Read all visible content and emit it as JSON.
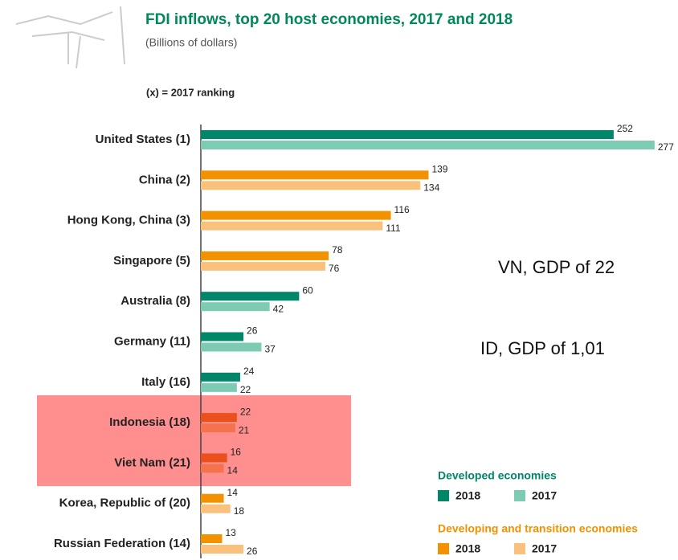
{
  "chart_data": {
    "type": "bar",
    "orientation": "horizontal",
    "title": "FDI inflows, top 20 host economies, 2017 and 2018",
    "subtitle": "(Billions of dollars)",
    "note": "(x) = 2017 ranking",
    "categories": [
      "United States (1)",
      "China (2)",
      "Hong Kong, China (3)",
      "Singapore (5)",
      "Australia (8)",
      "Germany (11)",
      "Italy (16)",
      "Indonesia (18)",
      "Viet Nam (21)",
      "Korea, Republic of (20)",
      "Russian Federation (14)"
    ],
    "series": [
      {
        "name": "2018",
        "values": [
          252,
          139,
          116,
          78,
          60,
          26,
          24,
          22,
          16,
          14,
          13
        ],
        "colors": [
          "#00876a",
          "#f39200",
          "#f39200",
          "#f39200",
          "#00876a",
          "#00876a",
          "#00876a",
          "#e9501c",
          "#e9501c",
          "#f39200",
          "#f39200"
        ]
      },
      {
        "name": "2017",
        "values": [
          277,
          134,
          111,
          76,
          42,
          37,
          22,
          21,
          14,
          18,
          26
        ],
        "colors": [
          "#7dcbb3",
          "#f9c17c",
          "#f9c17c",
          "#f9c17c",
          "#7dcbb3",
          "#7dcbb3",
          "#7dcbb3",
          "#f5734c",
          "#f5734c",
          "#f9c17c",
          "#f9c17c"
        ]
      }
    ],
    "xlim": [
      0,
      280
    ],
    "legend": [
      {
        "title": "Developed economies",
        "color": "#00876a",
        "entries": [
          {
            "name": "2018",
            "color": "#00876a"
          },
          {
            "name": "2017",
            "color": "#7dcbb3"
          }
        ]
      },
      {
        "title": "Developing and transition economies",
        "color": "#f39200",
        "entries": [
          {
            "name": "2018",
            "color": "#f39200"
          },
          {
            "name": "2017",
            "color": "#f9c17c"
          }
        ]
      }
    ],
    "annotations": [
      "VN, GDP of 22",
      "ID, GDP of 1,01"
    ]
  }
}
